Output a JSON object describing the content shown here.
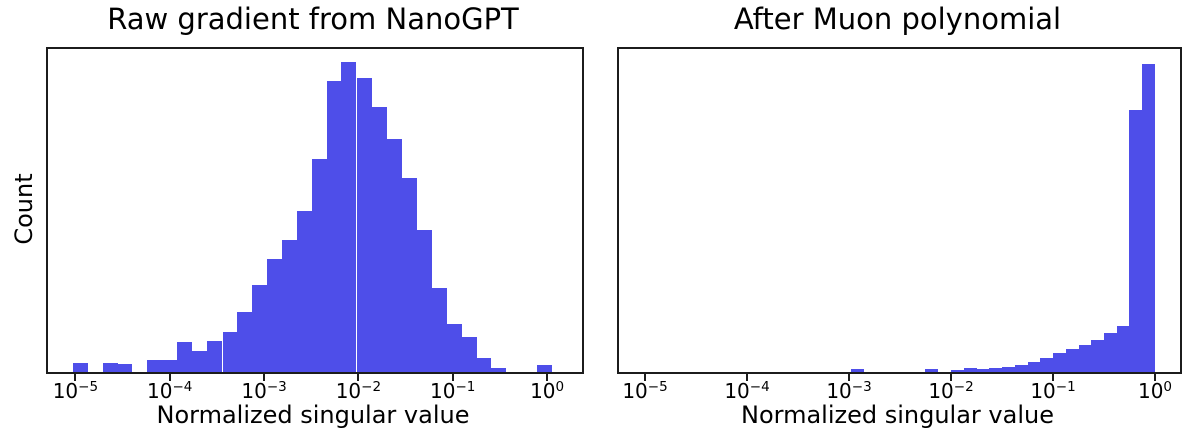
{
  "figure": {
    "background": "#ffffff",
    "bar_color": "#4E4EE9",
    "axis_color": "#1c1c1c",
    "text_color": "#000000"
  },
  "chart_data": [
    {
      "type": "bar",
      "subtype": "histogram",
      "title": "Raw gradient from NanoGPT",
      "xlabel": "Normalized singular value",
      "ylabel": "Count",
      "x_scale": "log10",
      "xlim_log10": [
        -5.29,
        0.37
      ],
      "x_tick_exponents": [
        -5,
        -4,
        -3,
        -2,
        -1,
        0
      ],
      "y_ticks": "none (unlabeled count axis)",
      "grid": "off",
      "legend": "none",
      "bin_width_log10": 0.1587,
      "note": "bar heights are relative to plot height (peak = 0.96); x values are log10 of left bin edge",
      "bars": [
        [
          -5.03,
          0.028
        ],
        [
          -4.87,
          0.0
        ],
        [
          -4.71,
          0.028
        ],
        [
          -4.56,
          0.024
        ],
        [
          -4.4,
          0.0
        ],
        [
          -4.24,
          0.038
        ],
        [
          -4.08,
          0.038
        ],
        [
          -3.92,
          0.092
        ],
        [
          -3.76,
          0.065
        ],
        [
          -3.6,
          0.095
        ],
        [
          -3.44,
          0.125
        ],
        [
          -3.29,
          0.185
        ],
        [
          -3.13,
          0.27
        ],
        [
          -2.97,
          0.35
        ],
        [
          -2.81,
          0.41
        ],
        [
          -2.65,
          0.5
        ],
        [
          -2.49,
          0.66
        ],
        [
          -2.33,
          0.9
        ],
        [
          -2.18,
          0.96
        ],
        [
          -2.02,
          0.91
        ],
        [
          -1.86,
          0.82
        ],
        [
          -1.7,
          0.72
        ],
        [
          -1.54,
          0.6
        ],
        [
          -1.38,
          0.44
        ],
        [
          -1.22,
          0.26
        ],
        [
          -1.06,
          0.15
        ],
        [
          -0.9,
          0.11
        ],
        [
          -0.75,
          0.045
        ],
        [
          -0.59,
          0.012
        ],
        [
          -0.43,
          0.0
        ],
        [
          -0.27,
          0.0
        ],
        [
          -0.11,
          0.022
        ]
      ]
    },
    {
      "type": "bar",
      "subtype": "histogram",
      "title": "After Muon polynomial",
      "xlabel": "Normalized singular value",
      "ylabel": "",
      "x_scale": "log10",
      "xlim_log10": [
        -5.255,
        0.245
      ],
      "x_tick_exponents": [
        -5,
        -4,
        -3,
        -2,
        -1,
        0
      ],
      "y_ticks": "none (unlabeled count axis)",
      "grid": "off",
      "legend": "none",
      "bin_width_log10": 0.1275,
      "note": "bar heights are relative to plot height (peak = 0.955); x values are log10 of left bin edge",
      "bars": [
        [
          -2.98,
          0.01
        ],
        [
          -2.26,
          0.01
        ],
        [
          -2.0,
          0.007
        ],
        [
          -1.87,
          0.013
        ],
        [
          -1.75,
          0.008
        ],
        [
          -1.63,
          0.011
        ],
        [
          -1.5,
          0.015
        ],
        [
          -1.37,
          0.022
        ],
        [
          -1.25,
          0.03
        ],
        [
          -1.13,
          0.042
        ],
        [
          -1.0,
          0.058
        ],
        [
          -0.87,
          0.07
        ],
        [
          -0.75,
          0.085
        ],
        [
          -0.63,
          0.1
        ],
        [
          -0.5,
          0.12
        ],
        [
          -0.37,
          0.142
        ],
        [
          -0.255,
          0.81
        ],
        [
          -0.127,
          0.955
        ]
      ]
    }
  ],
  "layout_note_visible_text_only": {
    "left_title": "Raw gradient from NanoGPT",
    "right_title": "After Muon polynomial",
    "shared_xlabel": "Normalized singular value",
    "left_ylabel": "Count",
    "tick_labels": [
      "10⁻⁵",
      "10⁻⁴",
      "10⁻³",
      "10⁻²",
      "10⁻¹",
      "10⁰"
    ]
  }
}
